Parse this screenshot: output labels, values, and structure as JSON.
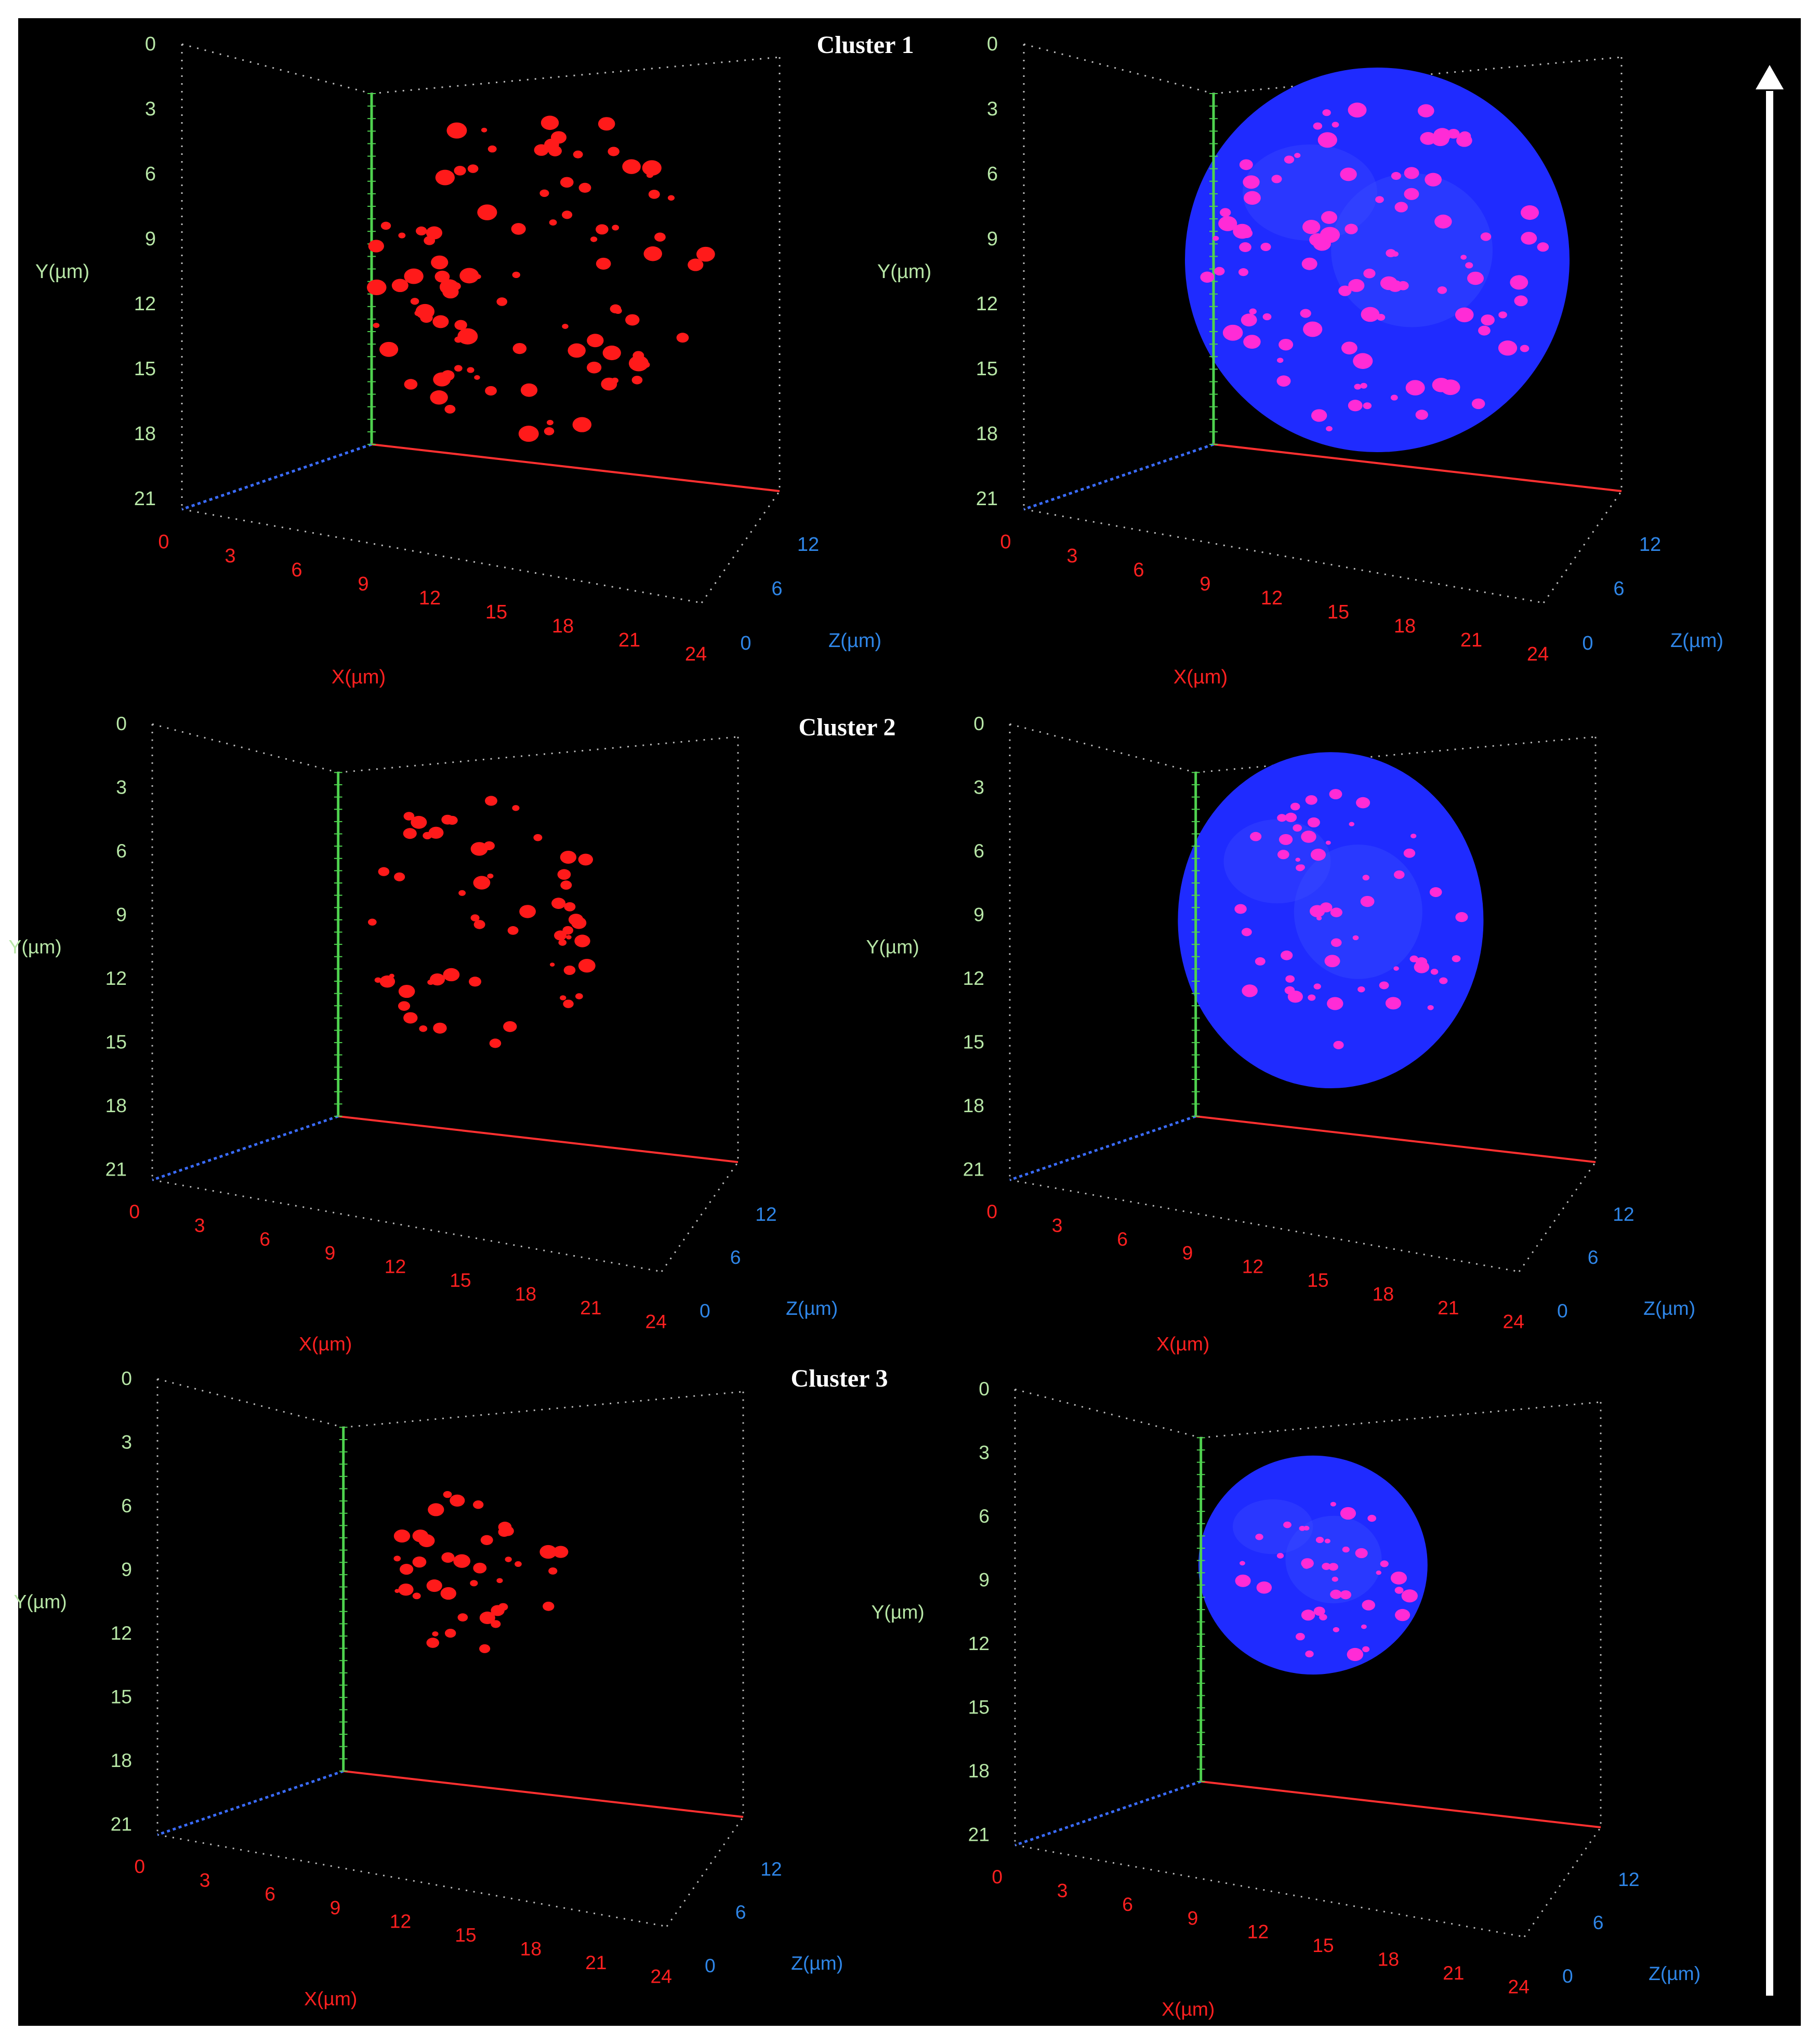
{
  "colors": {
    "background": "#000000",
    "frame": "#ffffff",
    "y_axis": "#4fd24f",
    "y_labels": "#b7e6a6",
    "x_axis": "#ff3030",
    "x_labels": "#ff2020",
    "z_axis": "#3a6cff",
    "z_labels": "#2f86e8",
    "grid_ticks": "#bdbdbd",
    "puncta_red": "#ff1a1a",
    "puncta_magenta": "#ff2bd6",
    "nucleus_blue": "#1f2bff",
    "arrow": "#ffffff"
  },
  "axes": {
    "y_title": "Y(µm)",
    "x_title": "X(µm)",
    "z_title": "Z(µm)",
    "y_ticks": [
      "0",
      "3",
      "6",
      "9",
      "12",
      "15",
      "18",
      "21"
    ],
    "x_ticks": [
      "0",
      "3",
      "6",
      "9",
      "12",
      "15",
      "18",
      "21",
      "24"
    ],
    "z_ticks": [
      "12",
      "6",
      "0"
    ]
  },
  "clusters": [
    {
      "title": "Cluster 1"
    },
    {
      "title": "Cluster 2"
    },
    {
      "title": "Cluster 3"
    }
  ]
}
